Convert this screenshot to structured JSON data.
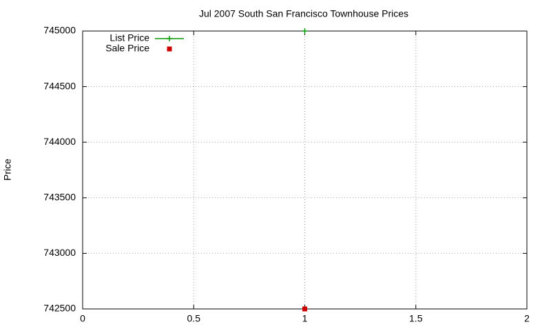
{
  "chart_data": {
    "type": "scatter",
    "title": "Jul 2007 South San Francisco Townhouse Prices",
    "y_label": "Price",
    "xlim": [
      0,
      2
    ],
    "xticks": [
      0,
      0.5,
      1,
      1.5,
      2
    ],
    "ylim": [
      742500,
      745000
    ],
    "yticks": [
      742500,
      743000,
      743500,
      744000,
      744500,
      745000
    ],
    "grid": true,
    "legend": "top-left",
    "series": [
      {
        "name": "List Price",
        "color": "#009900",
        "style": "linespoints",
        "marker": "plus",
        "x": [
          1
        ],
        "values": [
          745000
        ]
      },
      {
        "name": "Sale Price",
        "color": "#cc0000",
        "style": "points",
        "marker": "square",
        "x": [
          1
        ],
        "values": [
          742500
        ]
      }
    ]
  }
}
